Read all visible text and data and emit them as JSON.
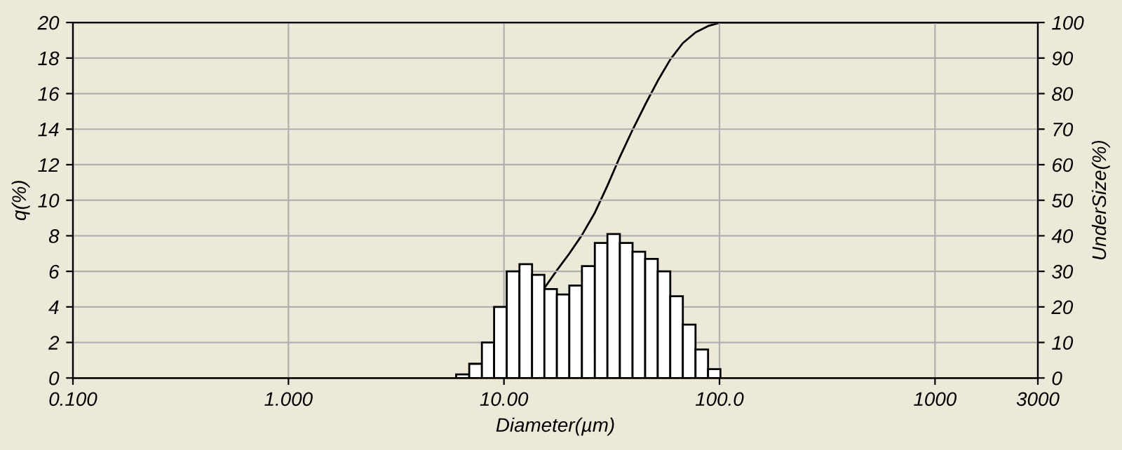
{
  "chart_data": {
    "type": "histogram",
    "xlabel": "Diameter(µm)",
    "ylabel": "q(%)",
    "y2label": "UnderSize(%)",
    "log": "x",
    "bins": [
      6.0,
      6.9,
      7.9,
      9.0,
      10.3,
      11.8,
      13.5,
      15.4,
      17.6,
      20.1,
      23.0,
      26.4,
      30.2,
      34.5,
      39.5,
      45.2,
      51.7,
      59.1,
      67.6,
      77.4,
      88.5,
      101
    ],
    "series": [
      {
        "color": "#ffffff",
        "values": [
          0.2,
          0.8,
          2.0,
          4.0,
          6.0,
          6.4,
          5.8,
          5.0,
          4.7,
          5.2,
          6.3,
          7.6,
          8.1,
          7.6,
          7.1,
          6.7,
          6.0,
          4.6,
          3.0,
          1.6,
          0.5
        ]
      },
      {
        "type": "line",
        "axis": "y2",
        "color": "#000000",
        "x": [
          6.0,
          6.9,
          7.9,
          9.0,
          10.3,
          11.8,
          13.5,
          15.4,
          17.6,
          20.1,
          23.0,
          26.4,
          30.2,
          34.5,
          39.5,
          45.2,
          51.7,
          59.1,
          67.6,
          77.4,
          88.5,
          101,
          3000
        ],
        "values": [
          0,
          0.2,
          1.0,
          3.0,
          7.0,
          13.0,
          19.5,
          25.3,
          30.3,
          35.0,
          40.2,
          46.5,
          54.1,
          62.2,
          69.8,
          76.9,
          83.6,
          89.6,
          94.2,
          97.2,
          99.0,
          100,
          100
        ]
      }
    ],
    "xlim": [
      0.1,
      3000
    ],
    "xticks": [
      {
        "value": 0.1,
        "label": "0.100"
      },
      {
        "value": 1,
        "label": "1.000"
      },
      {
        "value": 10,
        "label": "10.00"
      },
      {
        "value": 100,
        "label": "100.0"
      },
      1000,
      3000
    ],
    "ylim": [
      0,
      20
    ],
    "yticks": [
      0,
      2,
      4,
      6,
      8,
      10,
      12,
      14,
      16,
      18,
      20
    ],
    "y2lim": [
      0,
      100
    ],
    "y2ticks": [
      0,
      10,
      20,
      30,
      40,
      50,
      60,
      70,
      80,
      90,
      100
    ],
    "grid": true,
    "line_style": "solid",
    "marker": "none"
  }
}
